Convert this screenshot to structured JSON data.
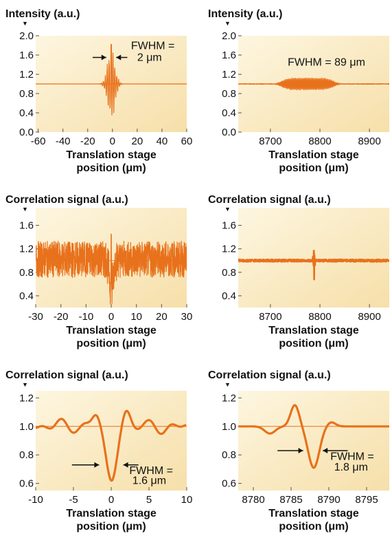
{
  "chart_data": [
    {
      "type": "line",
      "panel": "top-left",
      "ylabel": "Intensity (a.u.)",
      "xlabel": [
        "Translation stage",
        "position (μm)"
      ],
      "xlim": [
        -62,
        60
      ],
      "ylim": [
        0,
        2.0
      ],
      "xticks": [
        "-60",
        "-40",
        "-20",
        "0",
        "20",
        "40",
        "60"
      ],
      "xtick_values": [
        -60,
        -40,
        -20,
        0,
        20,
        40,
        60
      ],
      "yticks": [
        "0.0",
        "0.4",
        "0.8",
        "1.2",
        "1.6",
        "2.0"
      ],
      "ytick_values": [
        0,
        0.4,
        0.8,
        1.2,
        1.6,
        2.0
      ],
      "baseline": 1.0,
      "signal": {
        "center": -1,
        "width": 2,
        "max": 1.82,
        "min": 0.28
      },
      "annotation": {
        "lines": [
          "FWHM =",
          "2 μm"
        ],
        "value": 2,
        "unit": "μm"
      }
    },
    {
      "type": "line",
      "panel": "top-right",
      "ylabel": "Intensity (a.u.)",
      "xlabel": [
        "Translation stage",
        "position (μm)"
      ],
      "xlim": [
        8635,
        8940
      ],
      "ylim": [
        0,
        2.0
      ],
      "xticks": [
        "8700",
        "8800",
        "8900"
      ],
      "xtick_values": [
        8700,
        8800,
        8900
      ],
      "yticks": [
        "0.0",
        "0.4",
        "0.8",
        "1.2",
        "1.6",
        "2.0"
      ],
      "ytick_values": [
        0,
        0.4,
        0.8,
        1.2,
        1.6,
        2.0
      ],
      "baseline": 1.0,
      "signal": {
        "center": 8775,
        "width": 89,
        "max": 1.12,
        "min": 0.86
      },
      "annotation": {
        "lines": [
          "FWHM = 89 μm"
        ],
        "value": 89,
        "unit": "μm"
      }
    },
    {
      "type": "line",
      "panel": "middle-left",
      "ylabel": "Correlation signal (a.u.)",
      "xlabel": [
        "Translation stage",
        "position (μm)"
      ],
      "xlim": [
        -30,
        30
      ],
      "ylim": [
        0.2,
        1.9
      ],
      "xticks": [
        "-30",
        "-20",
        "-10",
        "0",
        "10",
        "20",
        "30"
      ],
      "xtick_values": [
        -30,
        -20,
        -10,
        0,
        10,
        20,
        30
      ],
      "yticks": [
        "0.4",
        "0.8",
        "1.2",
        "1.6"
      ],
      "ytick_values": [
        0.4,
        0.8,
        1.2,
        1.6
      ],
      "baseline": 1.0,
      "signal": {
        "center": 0,
        "band": [
          0.7,
          1.35
        ],
        "min": 0.27,
        "max": 1.45
      }
    },
    {
      "type": "line",
      "panel": "middle-right",
      "ylabel": "Correlation signal (a.u.)",
      "xlabel": [
        "Translation stage",
        "position (μm)"
      ],
      "xlim": [
        8635,
        8940
      ],
      "ylim": [
        0.2,
        1.9
      ],
      "xticks": [
        "8700",
        "8800",
        "8900"
      ],
      "xtick_values": [
        8700,
        8800,
        8900
      ],
      "yticks": [
        "0.4",
        "0.8",
        "1.2",
        "1.6"
      ],
      "ytick_values": [
        0.4,
        0.8,
        1.2,
        1.6
      ],
      "baseline": 1.0,
      "signal": {
        "center": 8788,
        "max": 1.17,
        "min": 0.68
      }
    },
    {
      "type": "line",
      "panel": "bottom-left",
      "ylabel": "Correlation signal (a.u.)",
      "xlabel": [
        "Translation stage",
        "position (μm)"
      ],
      "xlim": [
        -10,
        10
      ],
      "ylim": [
        0.55,
        1.25
      ],
      "xticks": [
        "-10",
        "-5",
        "0",
        "5",
        "10"
      ],
      "xtick_values": [
        -10,
        -5,
        0,
        5,
        10
      ],
      "yticks": [
        "0.6",
        "0.8",
        "1.0",
        "1.2"
      ],
      "ytick_values": [
        0.6,
        0.8,
        1.0,
        1.2
      ],
      "baseline": 1.0,
      "signal": {
        "center": 0,
        "min": 0.62,
        "max": 1.09
      },
      "annotation": {
        "lines": [
          "FWHM =",
          "1.6 μm"
        ],
        "value": 1.6,
        "unit": "μm"
      }
    },
    {
      "type": "line",
      "panel": "bottom-right",
      "ylabel": "Correlation signal (a.u.)",
      "xlabel": [
        "Translation stage",
        "position (μm)"
      ],
      "xlim": [
        8778,
        8798
      ],
      "ylim": [
        0.55,
        1.25
      ],
      "xticks": [
        "8780",
        "8785",
        "8790",
        "8795"
      ],
      "xtick_values": [
        8780,
        8785,
        8790,
        8795
      ],
      "yticks": [
        "0.6",
        "0.8",
        "1.0",
        "1.2"
      ],
      "ytick_values": [
        0.6,
        0.8,
        1.0,
        1.2
      ],
      "baseline": 1.0,
      "signal": {
        "center": 8788,
        "min": 0.71,
        "max": 1.15
      },
      "annotation": {
        "lines": [
          "FWHM =",
          "1.8 μm"
        ],
        "value": 1.8,
        "unit": "μm"
      }
    }
  ]
}
